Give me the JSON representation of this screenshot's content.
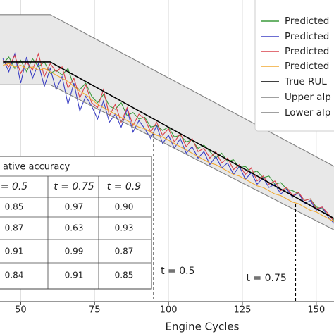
{
  "chart_data": {
    "type": "line",
    "x_label": "Engine Cycles",
    "xlim": [
      43,
      156
    ],
    "ylim": [
      -22,
      163
    ],
    "xticks": [
      50,
      75,
      100,
      125,
      150
    ],
    "grid": true,
    "legend": "upper right",
    "x": [
      44,
      46,
      48,
      50,
      52,
      54,
      56,
      58,
      60,
      62,
      64,
      66,
      68,
      70,
      72,
      74,
      76,
      78,
      80,
      82,
      84,
      86,
      88,
      90,
      92,
      94,
      96,
      98,
      100,
      102,
      104,
      106,
      108,
      110,
      112,
      114,
      116,
      118,
      120,
      122,
      124,
      126,
      128,
      130,
      132,
      134,
      136,
      138,
      140,
      142,
      144,
      146,
      148,
      150,
      152,
      154,
      156
    ],
    "series": [
      {
        "name": "Predicted",
        "color": "#3a9a3a",
        "values": [
          124,
          128,
          121,
          126,
          119,
          127,
          122,
          125,
          118,
          120,
          117,
          121,
          110,
          108,
          112,
          104,
          100,
          105,
          98,
          96,
          100,
          92,
          94,
          90,
          91,
          85,
          86,
          83,
          85,
          79,
          80,
          76,
          77,
          72,
          74,
          70,
          66,
          69,
          64,
          65,
          60,
          61,
          57,
          58,
          54,
          55,
          50,
          51,
          47,
          46,
          44,
          40,
          41,
          36,
          35,
          31,
          28
        ]
      },
      {
        "name": "Predicted",
        "color": "#3b3fc4",
        "values": [
          127,
          119,
          130,
          112,
          128,
          115,
          124,
          110,
          121,
          108,
          116,
          99,
          112,
          95,
          104,
          98,
          90,
          101,
          88,
          93,
          85,
          96,
          82,
          89,
          84,
          78,
          86,
          75,
          80,
          72,
          78,
          69,
          73,
          66,
          70,
          62,
          67,
          60,
          63,
          56,
          61,
          53,
          57,
          50,
          54,
          48,
          50,
          44,
          47,
          42,
          45,
          38,
          40,
          34,
          36,
          30,
          26
        ]
      },
      {
        "name": "Predicted",
        "color": "#d9404a",
        "values": [
          126,
          122,
          129,
          118,
          125,
          120,
          130,
          116,
          124,
          119,
          122,
          109,
          115,
          103,
          111,
          100,
          97,
          108,
          92,
          99,
          88,
          97,
          86,
          93,
          90,
          82,
          88,
          80,
          84,
          76,
          81,
          73,
          78,
          70,
          72,
          66,
          70,
          63,
          66,
          59,
          62,
          56,
          60,
          52,
          55,
          50,
          52,
          46,
          48,
          43,
          45,
          40,
          41,
          35,
          36,
          32,
          27
        ]
      },
      {
        "name": "Predicted",
        "color": "#f0a830",
        "values": [
          123,
          124,
          122,
          123,
          121,
          122,
          120,
          121,
          119,
          117,
          115,
          113,
          110,
          107,
          105,
          102,
          99,
          97,
          95,
          93,
          91,
          89,
          87,
          85,
          84,
          82,
          80,
          79,
          77,
          75,
          73,
          71,
          69,
          67,
          65,
          63,
          62,
          60,
          58,
          56,
          55,
          53,
          51,
          49,
          48,
          46,
          44,
          43,
          41,
          39,
          38,
          36,
          34,
          33,
          31,
          29,
          27
        ]
      },
      {
        "name": "True RUL",
        "color": "#000000",
        "values": [
          125,
          125,
          125,
          125,
          125,
          125,
          125,
          125,
          125,
          123,
          121,
          119,
          117,
          115,
          113,
          111,
          109,
          107,
          105,
          103,
          101,
          99,
          97,
          95,
          93,
          91,
          89,
          87,
          85,
          83,
          81,
          79,
          77,
          75,
          73,
          71,
          69,
          67,
          65,
          63,
          61,
          59,
          57,
          55,
          53,
          51,
          49,
          47,
          45,
          43,
          41,
          39,
          37,
          35,
          33,
          31,
          29
        ]
      },
      {
        "name": "Upper alp",
        "color": "#808080",
        "x": [
          43,
          60,
          156
        ],
        "values": [
          154,
          154,
          61
        ]
      },
      {
        "name": "Lower alp",
        "color": "#808080",
        "x": [
          43,
          60,
          156
        ],
        "values": [
          111,
          111,
          22
        ]
      }
    ],
    "band_color": "#e8e8e8",
    "annotations": [
      {
        "text": "t = 0.5",
        "x": 95
      },
      {
        "text": "t = 0.75",
        "x": 143
      }
    ],
    "table": {
      "title": "ative accuracy",
      "columns": [
        "= 0.5",
        "t = 0.75",
        "t = 0.9"
      ],
      "rows": [
        [
          "0.85",
          "0.97",
          "0.90"
        ],
        [
          "0.87",
          "0.63",
          "0.93"
        ],
        [
          "0.91",
          "0.99",
          "0.87"
        ],
        [
          "0.84",
          "0.91",
          "0.85"
        ]
      ]
    }
  }
}
